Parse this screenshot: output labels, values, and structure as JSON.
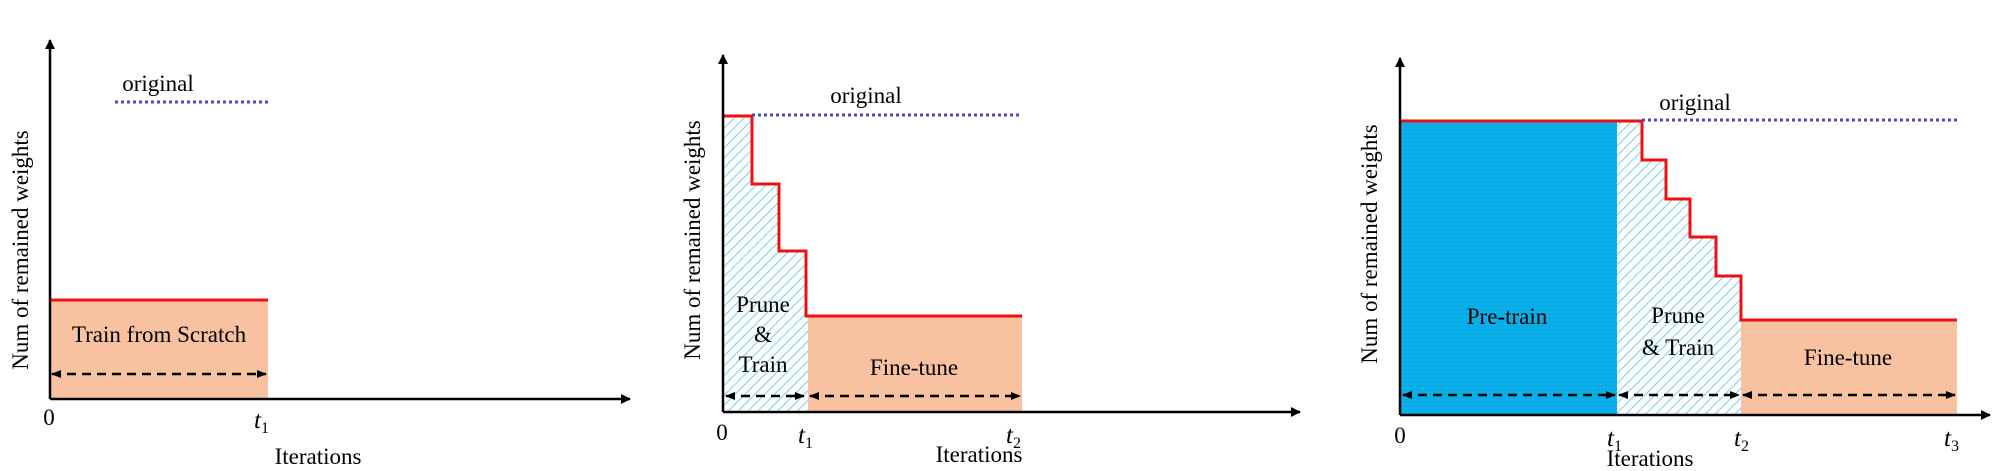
{
  "panels": [
    {
      "ylabel": "Num of remained weights",
      "xlabel": "Iterations",
      "original_label": "original",
      "origin_label": "0",
      "ticks": [
        {
          "base": "t",
          "sub": "1"
        }
      ],
      "regions": [
        {
          "label": "Train from Scratch",
          "kind": "scratch"
        }
      ]
    },
    {
      "ylabel": "Num of remained weights",
      "xlabel": "Iterations",
      "original_label": "original",
      "origin_label": "0",
      "ticks": [
        {
          "base": "t",
          "sub": "1"
        },
        {
          "base": "t",
          "sub": "2"
        }
      ],
      "regions": [
        {
          "label_lines": [
            "Prune",
            "&",
            "Train"
          ],
          "kind": "prune"
        },
        {
          "label": "Fine-tune",
          "kind": "finetune"
        }
      ]
    },
    {
      "ylabel": "Num of remained weights",
      "xlabel": "Iterations",
      "original_label": "original",
      "origin_label": "0",
      "ticks": [
        {
          "base": "t",
          "sub": "1"
        },
        {
          "base": "t",
          "sub": "2"
        },
        {
          "base": "t",
          "sub": "3"
        }
      ],
      "regions": [
        {
          "label": "Pre-train",
          "kind": "pretrain"
        },
        {
          "label_lines": [
            "Prune",
            "& Train"
          ],
          "kind": "prune"
        },
        {
          "label": "Fine-tune",
          "kind": "finetune"
        }
      ]
    }
  ],
  "colors": {
    "weights_line": "#ee1111",
    "original_line": "#4a4ad0",
    "scratch_fill": "#f9c3a3",
    "finetune_fill": "#f9c3a3",
    "pretrain_fill": "#0ab0ea",
    "prune_hatch": "#7fd3ee",
    "axis": "#000000"
  }
}
